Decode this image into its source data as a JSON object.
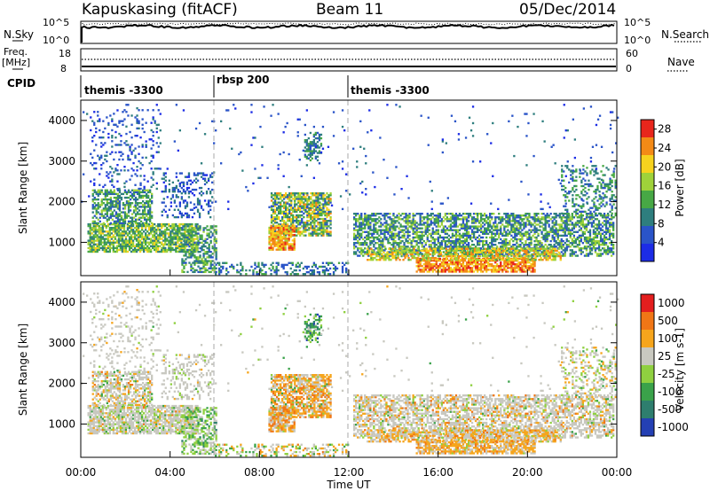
{
  "header": {
    "title": "Kapuskasing (fitACF)",
    "beam": "Beam 11",
    "date": "05/Dec/2014"
  },
  "summary": {
    "nsky_label": "N.Sky",
    "nsearch_label": "N.Search",
    "freq_label_1": "Freq.",
    "freq_label_2": "[MHz]",
    "nave_label": "Nave",
    "cpid_label": "CPID",
    "nsky_ticks": [
      "10^5",
      "10^0"
    ],
    "nsearch_ticks": [
      "10^5",
      "10^0"
    ],
    "freq_ticks": [
      "18",
      "8"
    ],
    "nave_ticks": [
      "60",
      "0"
    ],
    "cpid_segments": [
      {
        "label": "themis -3300",
        "start_h": 0,
        "end_h": 6.0
      },
      {
        "label": "rbsp 200",
        "start_h": 6.0,
        "end_h": 12.0
      },
      {
        "label": "themis -3300",
        "start_h": 12.0,
        "end_h": 24
      }
    ]
  },
  "chart_data": [
    {
      "type": "heatmap",
      "name": "power",
      "ylabel": "Slant Range [km]",
      "xlim_h": [
        0,
        24
      ],
      "ylim_km": [
        180,
        4500
      ],
      "yticks": [
        1000,
        2000,
        3000,
        4000
      ],
      "colorbar": {
        "label": "Power [dB]",
        "ticks": [
          4,
          8,
          12,
          16,
          20,
          24,
          28
        ],
        "range": [
          0,
          30
        ],
        "bands": [
          {
            "from": 0,
            "to": 4,
            "color": "#1c2ce6"
          },
          {
            "from": 4,
            "to": 8,
            "color": "#2a54c8"
          },
          {
            "from": 8,
            "to": 12,
            "color": "#2e7e7e"
          },
          {
            "from": 12,
            "to": 16,
            "color": "#47a845"
          },
          {
            "from": 16,
            "to": 20,
            "color": "#9fd23a"
          },
          {
            "from": 20,
            "to": 24,
            "color": "#f6d21e"
          },
          {
            "from": 24,
            "to": 28,
            "color": "#f38a16"
          },
          {
            "from": 28,
            "to": 30,
            "color": "#e8261c"
          }
        ]
      }
    },
    {
      "type": "heatmap",
      "name": "velocity",
      "xlabel": "Time UT",
      "ylabel": "Slant Range [km]",
      "xlim_h": [
        0,
        24
      ],
      "ylim_km": [
        180,
        4500
      ],
      "xticks": [
        "00:00",
        "04:00",
        "08:00",
        "12:00",
        "16:00",
        "20:00",
        "00:00"
      ],
      "yticks": [
        1000,
        2000,
        3000,
        4000
      ],
      "colorbar": {
        "label": "Velocity [m s-1]",
        "ticks": [
          "1000",
          "500",
          "100",
          "25",
          "-25",
          "-100",
          "-500",
          "-1000"
        ],
        "bands": [
          {
            "label": "1000",
            "color": "#2440b4"
          },
          {
            "label": "500",
            "color": "#2e7e6e"
          },
          {
            "label": "100",
            "color": "#3aa24a"
          },
          {
            "label": "25",
            "color": "#8fd040"
          },
          {
            "label": "-25",
            "color": "#c8c8c0"
          },
          {
            "label": "-100",
            "color": "#f6a51c"
          },
          {
            "label": "-500",
            "color": "#f07616"
          },
          {
            "label": "-1000",
            "color": "#e41e1e"
          }
        ]
      }
    }
  ]
}
